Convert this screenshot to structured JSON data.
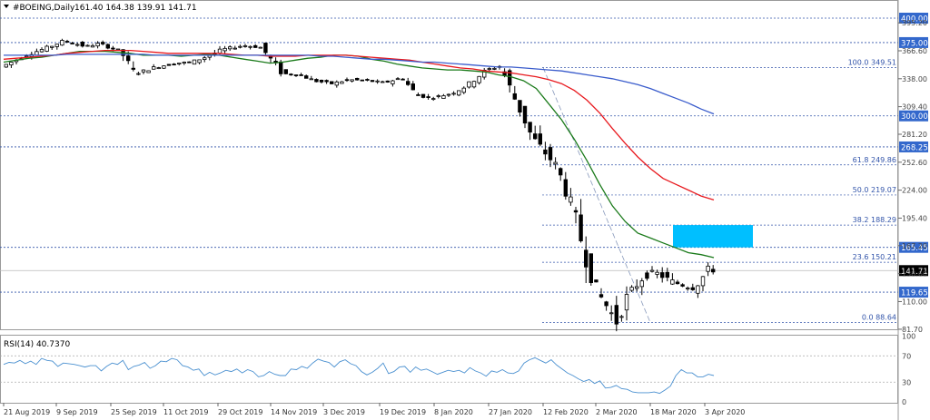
{
  "header": {
    "symbol": "#BOEING,Daily",
    "ohlc": "161.40 164.38 139.91 141.71",
    "indicator_label": "RSI(14) 40.7370"
  },
  "colors": {
    "bull": "#ffffff",
    "bear": "#000000",
    "ma_green": "#1a7a1a",
    "ma_red": "#e8191e",
    "ma_blue": "#3a5ccc",
    "level_line": "#3355aa",
    "fib_text": "#3355aa",
    "price_badge": "#3368cc",
    "current_badge": "#000000",
    "zone": "#00bfff",
    "rsi": "#4a90d0"
  },
  "chart_data": [
    {
      "type": "candlestick",
      "title": "#BOEING,Daily",
      "x_tick_labels": [
        "21 Aug 2019",
        "9 Sep 2019",
        "25 Sep 2019",
        "11 Oct 2019",
        "29 Oct 2019",
        "14 Nov 2019",
        "3 Dec 2019",
        "19 Dec 2019",
        "8 Jan 2020",
        "27 Jan 2020",
        "12 Feb 2020",
        "2 Mar 2020",
        "18 Mar 2020",
        "3 Apr 2020"
      ],
      "y_tick_labels": [
        395.2,
        366.6,
        338.0,
        309.4,
        281.2,
        252.6,
        224.0,
        195.4,
        167.2,
        138.6,
        110.0,
        81.7
      ],
      "ylim": [
        70,
        400
      ],
      "current_price": 141.71,
      "horizontal_levels": [
        400.0,
        375.0,
        300.0,
        268.25,
        165.45,
        119.65
      ],
      "fibonacci": [
        {
          "label": "100.0 349.51",
          "value": 349.51
        },
        {
          "label": "61.8 249.86",
          "value": 249.86
        },
        {
          "label": "50.0 219.07",
          "value": 219.07
        },
        {
          "label": "38.2 188.29",
          "value": 188.29
        },
        {
          "label": "23.6 150.21",
          "value": 150.21
        },
        {
          "label": "0.0 88.64",
          "value": 88.64
        }
      ],
      "zone": {
        "from_price": 165.45,
        "to_price": 188.29
      },
      "ma_green": [
        355,
        357,
        359,
        360,
        362,
        364,
        366,
        366,
        366,
        365,
        364,
        362,
        362,
        362,
        361,
        362,
        363,
        362,
        360,
        358,
        356,
        354,
        355,
        357,
        359,
        360,
        362,
        362,
        361,
        358,
        356,
        353,
        351,
        349,
        348,
        347,
        347,
        346,
        345,
        342,
        340,
        336,
        328,
        312,
        296,
        276,
        254,
        230,
        208,
        192,
        180,
        175,
        170,
        165,
        160,
        158,
        155
      ],
      "ma_red": [
        358,
        359,
        360,
        361,
        362,
        364,
        365,
        366,
        367,
        367,
        367,
        366,
        365,
        364,
        364,
        364,
        364,
        364,
        363,
        362,
        362,
        361,
        361,
        361,
        362,
        362,
        362,
        362,
        361,
        360,
        359,
        358,
        357,
        355,
        353,
        351,
        349,
        348,
        346,
        345,
        344,
        342,
        340,
        337,
        333,
        326,
        316,
        303,
        287,
        272,
        258,
        246,
        236,
        230,
        224,
        218,
        214
      ],
      "ma_blue": [
        362,
        362,
        362,
        362,
        362,
        363,
        363,
        363,
        363,
        363,
        363,
        363,
        362,
        362,
        362,
        362,
        362,
        362,
        362,
        362,
        362,
        362,
        362,
        362,
        362,
        361,
        361,
        360,
        359,
        358,
        358,
        357,
        356,
        355,
        355,
        354,
        353,
        352,
        351,
        350,
        350,
        349,
        348,
        347,
        346,
        344,
        342,
        340,
        338,
        335,
        332,
        328,
        323,
        318,
        313,
        307,
        302
      ]
    },
    {
      "type": "line",
      "title": "RSI(14) 40.7370",
      "y_tick_labels": [
        100,
        70,
        30,
        0
      ],
      "ylim": [
        0,
        100
      ],
      "values": [
        57,
        60,
        59,
        63,
        58,
        62,
        57,
        66,
        63,
        62,
        54,
        59,
        58,
        57,
        55,
        53,
        55,
        55,
        47,
        54,
        59,
        57,
        63,
        49,
        54,
        56,
        60,
        51,
        55,
        62,
        61,
        66,
        64,
        55,
        53,
        48,
        50,
        40,
        45,
        41,
        44,
        48,
        46,
        50,
        44,
        49,
        46,
        38,
        40,
        46,
        42,
        40,
        40,
        50,
        49,
        54,
        51,
        59,
        65,
        62,
        60,
        53,
        61,
        64,
        58,
        55,
        46,
        41,
        45,
        51,
        59,
        43,
        46,
        53,
        54,
        45,
        53,
        48,
        50,
        46,
        42,
        45,
        48,
        46,
        48,
        44,
        52,
        47,
        44,
        39,
        47,
        45,
        49,
        44,
        43,
        47,
        59,
        64,
        67,
        63,
        59,
        64,
        56,
        50,
        44,
        40,
        35,
        31,
        34,
        28,
        32,
        21,
        22,
        25,
        20,
        19,
        15,
        14,
        14,
        14,
        15,
        13,
        18,
        24,
        40,
        49,
        44,
        44,
        38,
        38,
        42,
        40
      ]
    }
  ]
}
